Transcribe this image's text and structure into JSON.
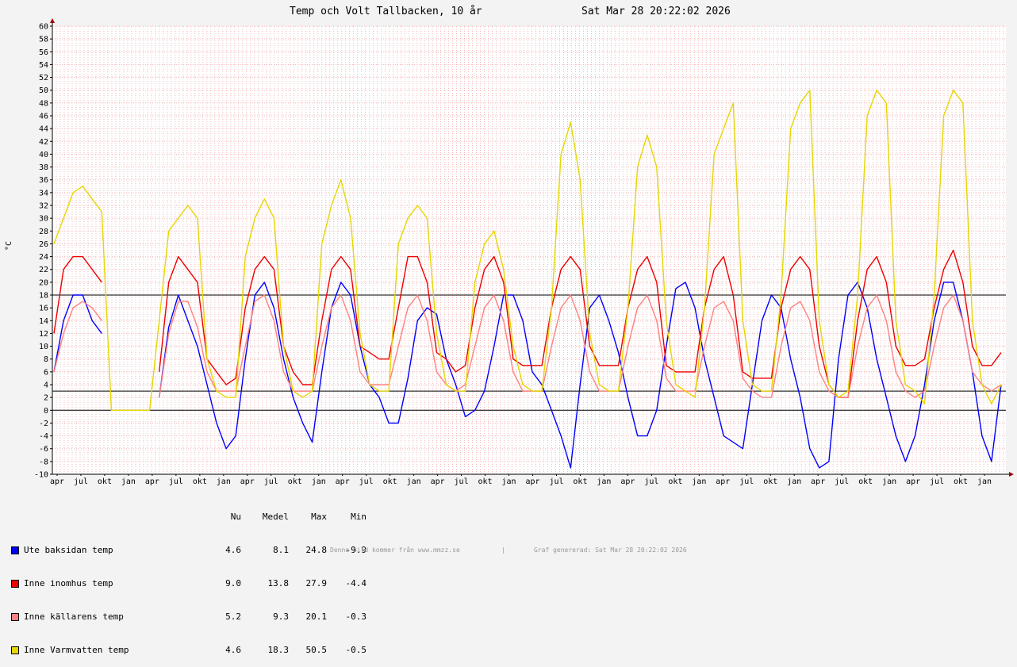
{
  "title": "Temp och Volt Tallbacken, 10 år",
  "timestamp": "Sat Mar 28 20:22:02 2026",
  "footer": {
    "left": "Denna bild kommer från www.mmzz.se",
    "sep": "|",
    "right": "Graf genererad: Sat Mar 28 20:22:02 2026"
  },
  "chart_data": {
    "type": "line",
    "ylabel": "°C",
    "ylim": [
      -10,
      60
    ],
    "y_ticks": [
      -10,
      -8,
      -6,
      -4,
      -2,
      0,
      2,
      4,
      6,
      8,
      10,
      12,
      14,
      16,
      18,
      20,
      22,
      24,
      26,
      28,
      30,
      32,
      34,
      36,
      38,
      40,
      42,
      44,
      46,
      48,
      50,
      52,
      54,
      56,
      58,
      60
    ],
    "x_tick_labels": [
      "apr",
      "jul",
      "okt",
      "jan",
      "apr",
      "jul",
      "okt",
      "jan",
      "apr",
      "jul",
      "okt",
      "jan",
      "apr",
      "jul",
      "okt",
      "jan",
      "apr",
      "jul",
      "okt",
      "jan",
      "apr",
      "jul",
      "okt",
      "jan",
      "apr",
      "jul",
      "okt",
      "jan",
      "apr",
      "jul",
      "okt",
      "jan",
      "apr",
      "jul",
      "okt",
      "jan",
      "apr",
      "jul",
      "okt",
      "jan"
    ],
    "hrules": [
      0,
      3,
      18
    ],
    "grid": true,
    "legend_position": "bottom-left",
    "legend_headers": [
      "Nu",
      "Medel",
      "Max",
      "Min"
    ],
    "series": [
      {
        "name": "Ute baksidan temp",
        "color": "#0000ff",
        "nu": "4.6",
        "medel": "8.1",
        "max": "24.8",
        "min": "-9.9",
        "values": [
          6,
          14,
          18,
          18,
          14,
          12,
          null,
          null,
          null,
          null,
          null,
          2,
          13,
          18,
          14,
          10,
          4,
          -2,
          -6,
          -4,
          8,
          18,
          20,
          16,
          8,
          2,
          -2,
          -5,
          6,
          16,
          20,
          18,
          10,
          4,
          2,
          -2,
          -2,
          5,
          14,
          16,
          15,
          8,
          4,
          -1,
          0,
          3,
          10,
          18,
          18,
          14,
          6,
          4,
          0,
          -4,
          -9,
          4,
          16,
          18,
          14,
          9,
          2,
          -4,
          -4,
          0,
          10,
          19,
          20,
          16,
          8,
          2,
          -4,
          -5,
          -6,
          4,
          14,
          18,
          16,
          8,
          2,
          -6,
          -9,
          -8,
          8,
          18,
          20,
          16,
          8,
          2,
          -4,
          -8,
          -4,
          4,
          14,
          20,
          20,
          14,
          6,
          -4,
          -8,
          4
        ]
      },
      {
        "name": "Inne inomhus temp",
        "color": "#ee0000",
        "nu": "9.0",
        "medel": "13.8",
        "max": "27.9",
        "min": "-4.4",
        "values": [
          12,
          22,
          24,
          24,
          22,
          20,
          null,
          null,
          null,
          null,
          null,
          6,
          20,
          24,
          22,
          20,
          8,
          6,
          4,
          5,
          16,
          22,
          24,
          22,
          10,
          6,
          4,
          4,
          14,
          22,
          24,
          22,
          10,
          9,
          8,
          8,
          16,
          24,
          24,
          20,
          9,
          8,
          6,
          7,
          16,
          22,
          24,
          20,
          8,
          7,
          7,
          7,
          16,
          22,
          24,
          22,
          10,
          7,
          7,
          7,
          16,
          22,
          24,
          20,
          7,
          6,
          6,
          6,
          16,
          22,
          24,
          18,
          6,
          5,
          5,
          5,
          16,
          22,
          24,
          22,
          10,
          4,
          2,
          2,
          14,
          22,
          24,
          20,
          10,
          7,
          7,
          8,
          16,
          22,
          25,
          20,
          10,
          7,
          7,
          9
        ]
      },
      {
        "name": "Inne källarens temp",
        "color": "#ff8080",
        "nu": "5.2",
        "medel": "9.3",
        "max": "20.1",
        "min": "-0.3",
        "values": [
          6,
          12,
          16,
          17,
          16,
          14,
          null,
          null,
          null,
          null,
          null,
          2,
          12,
          17,
          17,
          13,
          6,
          3,
          3,
          3,
          10,
          17,
          18,
          14,
          6,
          3,
          3,
          3,
          10,
          16,
          18,
          14,
          6,
          4,
          4,
          4,
          10,
          16,
          18,
          14,
          6,
          4,
          3,
          4,
          10,
          16,
          18,
          14,
          6,
          3,
          3,
          3,
          10,
          16,
          18,
          14,
          6,
          3,
          3,
          3,
          10,
          16,
          18,
          14,
          5,
          3,
          3,
          3,
          10,
          16,
          17,
          14,
          5,
          3,
          2,
          2,
          10,
          16,
          17,
          14,
          6,
          3,
          2,
          2,
          10,
          16,
          18,
          14,
          6,
          3,
          2,
          3,
          10,
          16,
          18,
          14,
          6,
          4,
          3,
          4
        ]
      },
      {
        "name": "Inne Varmvatten temp",
        "color": "#e6d600",
        "nu": "4.6",
        "medel": "18.3",
        "max": "50.5",
        "min": "-0.5",
        "values": [
          26,
          30,
          34,
          35,
          33,
          31,
          0,
          0,
          0,
          0,
          0,
          14,
          28,
          30,
          32,
          30,
          8,
          3,
          2,
          2,
          24,
          30,
          33,
          30,
          10,
          3,
          2,
          3,
          26,
          32,
          36,
          30,
          12,
          4,
          3,
          3,
          26,
          30,
          32,
          30,
          12,
          4,
          3,
          3,
          20,
          26,
          28,
          22,
          10,
          4,
          3,
          3,
          16,
          40,
          45,
          36,
          12,
          4,
          3,
          3,
          16,
          38,
          43,
          38,
          14,
          4,
          3,
          2,
          16,
          40,
          44,
          48,
          14,
          4,
          3,
          3,
          18,
          44,
          48,
          50,
          14,
          4,
          2,
          3,
          18,
          46,
          50,
          48,
          14,
          4,
          3,
          1,
          18,
          46,
          50,
          48,
          14,
          4,
          1,
          4
        ]
      }
    ]
  }
}
